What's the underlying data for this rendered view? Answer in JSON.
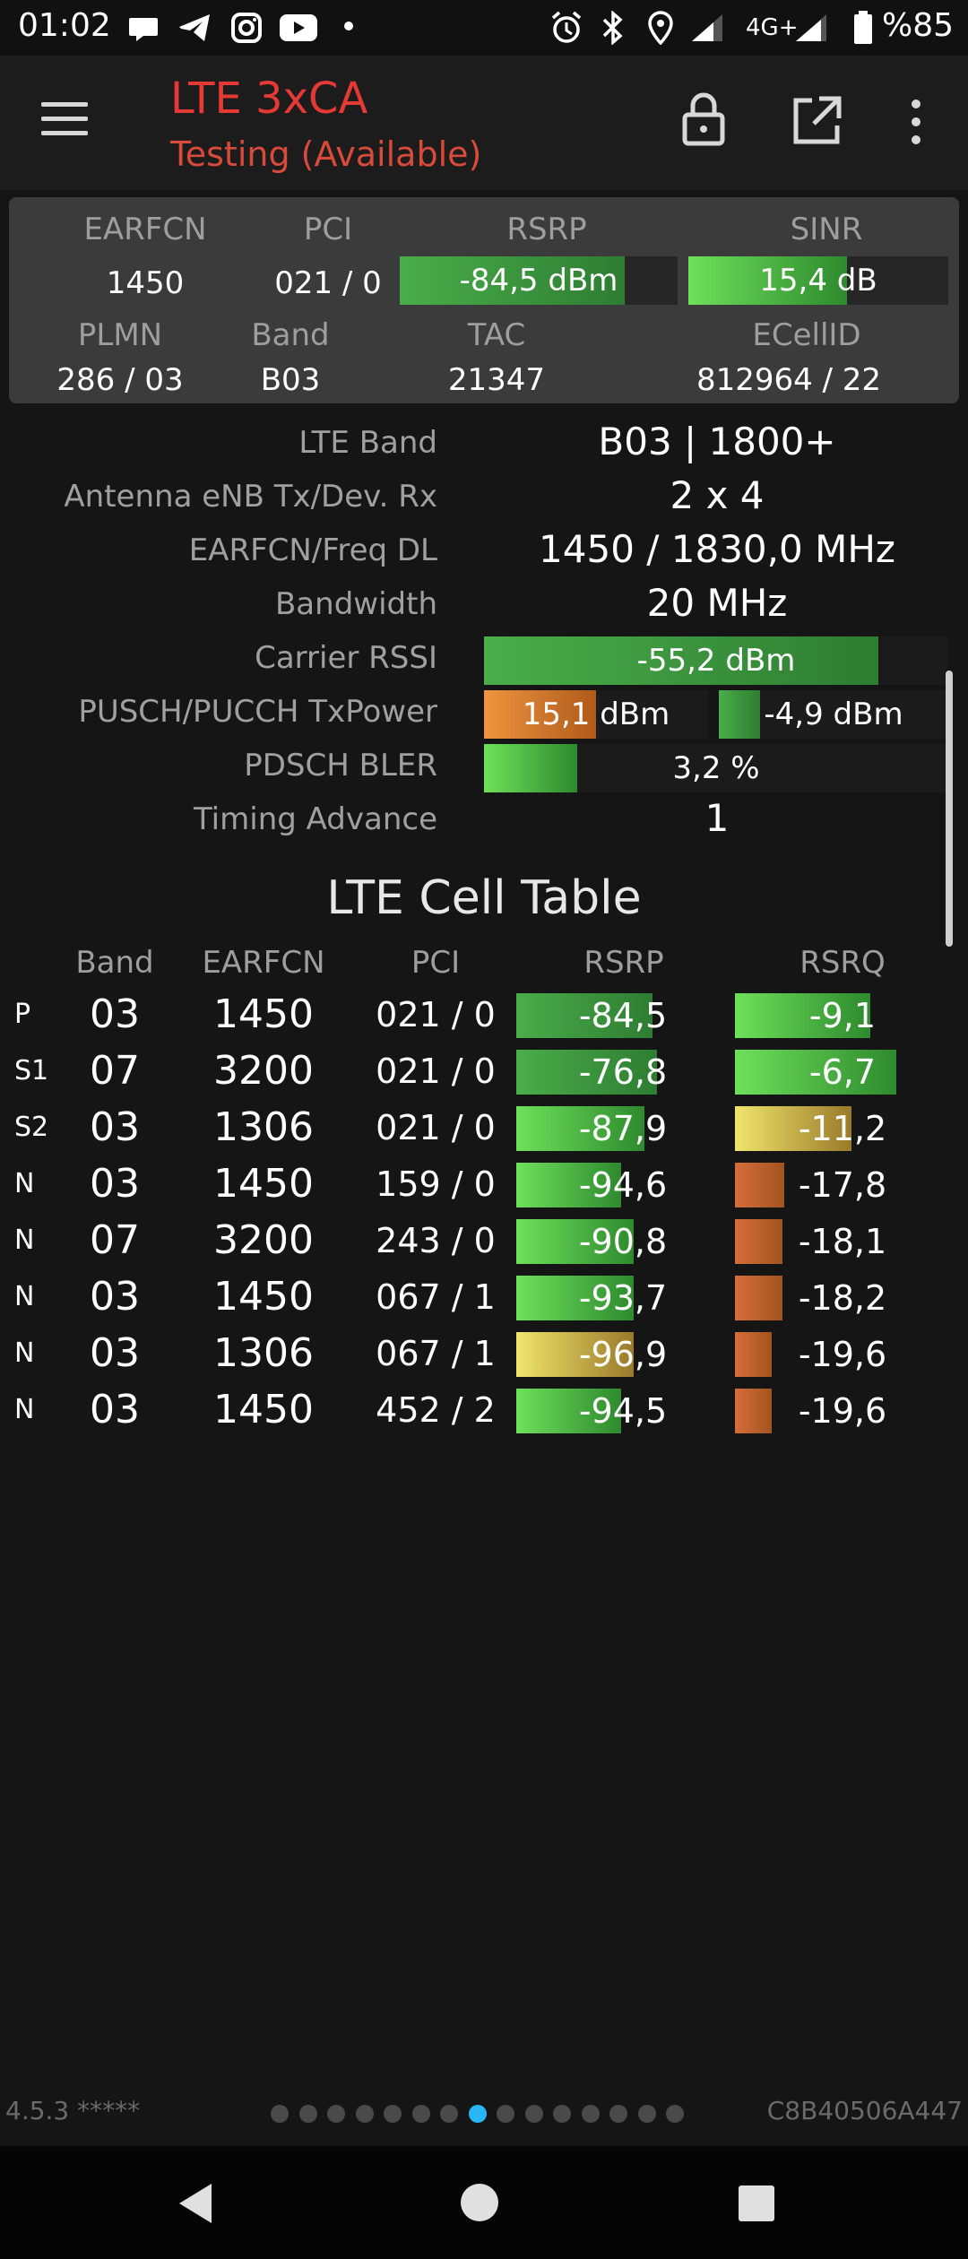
{
  "status_bar": {
    "time": "01:02",
    "notification_icons": [
      "chat-bubble-icon",
      "telegram-icon",
      "instagram-icon",
      "youtube-icon",
      "dot-icon"
    ],
    "right_icons": [
      "alarm-icon",
      "bluetooth-icon",
      "location-icon",
      "signal-icon"
    ],
    "network": "4G+",
    "battery": "%85"
  },
  "app_bar": {
    "title": "LTE 3xCA",
    "subtitle": "Testing (Available)",
    "accent_color": "#e53935"
  },
  "summary": {
    "labels": {
      "earfcn": "EARFCN",
      "pci": "PCI",
      "rsrp": "RSRP",
      "sinr": "SINR",
      "plmn": "PLMN",
      "band": "Band",
      "tac": "TAC",
      "ecellid": "ECellID"
    },
    "earfcn": "1450",
    "pci": "021 / 0",
    "rsrp": "-84,5 dBm",
    "rsrp_level": 0.81,
    "sinr": "15,4 dB",
    "sinr_level": 0.61,
    "plmn": "286 / 03",
    "band": "B03",
    "tac": "21347",
    "ecellid": "812964 / 22"
  },
  "details": {
    "lte_band_label": "LTE Band",
    "lte_band": "B03 | 1800+",
    "antenna_label": "Antenna eNB Tx/Dev. Rx",
    "antenna": "2 x 4",
    "earfcn_freq_label": "EARFCN/Freq DL",
    "earfcn_freq": "1450 / 1830,0 MHz",
    "bandwidth_label": "Bandwidth",
    "bandwidth": "20 MHz",
    "carrier_rssi_label": "Carrier RSSI",
    "carrier_rssi": "-55,2 dBm",
    "carrier_rssi_level": 0.85,
    "txpower_label": "PUSCH/PUCCH TxPower",
    "pusch_txpower": "15,1 dBm",
    "pusch_level": 0.5,
    "pucch_txpower": "-4,9 dBm",
    "pucch_level": 0.18,
    "bler_label": "PDSCH BLER",
    "bler": "3,2 %",
    "bler_level": 0.2,
    "timing_advance_label": "Timing Advance",
    "timing_advance": "1"
  },
  "table": {
    "title": "LTE Cell Table",
    "headers": [
      "Band",
      "EARFCN",
      "PCI",
      "RSRP",
      "RSRQ"
    ],
    "rows": [
      {
        "tag": "P",
        "band": "03",
        "earfcn": "1450",
        "pci": "021 / 0",
        "rsrp": "-84,5",
        "rsrp_level": 0.64,
        "rsrp_color": "green-dark",
        "rsrq": "-9,1",
        "rsrq_level": 0.63,
        "rsrq_color": "green"
      },
      {
        "tag": "S1",
        "band": "07",
        "earfcn": "3200",
        "pci": "021 / 0",
        "rsrp": "-76,8",
        "rsrp_level": 0.66,
        "rsrp_color": "green-dark",
        "rsrq": "-6,7",
        "rsrq_level": 0.75,
        "rsrq_color": "green"
      },
      {
        "tag": "S2",
        "band": "03",
        "earfcn": "1306",
        "pci": "021 / 0",
        "rsrp": "-87,9",
        "rsrp_level": 0.6,
        "rsrp_color": "green",
        "rsrq": "-11,2",
        "rsrq_level": 0.54,
        "rsrq_color": "yellow"
      },
      {
        "tag": "N",
        "band": "03",
        "earfcn": "1450",
        "pci": "159 / 0",
        "rsrp": "-94,6",
        "rsrp_level": 0.49,
        "rsrp_color": "green",
        "rsrq": "-17,8",
        "rsrq_level": 0.23,
        "rsrq_color": "orange"
      },
      {
        "tag": "N",
        "band": "07",
        "earfcn": "3200",
        "pci": "243 / 0",
        "rsrp": "-90,8",
        "rsrp_level": 0.55,
        "rsrp_color": "green",
        "rsrq": "-18,1",
        "rsrq_level": 0.22,
        "rsrq_color": "orange"
      },
      {
        "tag": "N",
        "band": "03",
        "earfcn": "1450",
        "pci": "067 / 1",
        "rsrp": "-93,7",
        "rsrp_level": 0.55,
        "rsrp_color": "green",
        "rsrq": "-18,2",
        "rsrq_level": 0.22,
        "rsrq_color": "orange"
      },
      {
        "tag": "N",
        "band": "03",
        "earfcn": "1306",
        "pci": "067 / 1",
        "rsrp": "-96,9",
        "rsrp_level": 0.55,
        "rsrp_color": "yellow",
        "rsrq": "-19,6",
        "rsrq_level": 0.17,
        "rsrq_color": "orange"
      },
      {
        "tag": "N",
        "band": "03",
        "earfcn": "1450",
        "pci": "452 / 2",
        "rsrp": "-94,5",
        "rsrp_level": 0.49,
        "rsrp_color": "green",
        "rsrq": "-19,6",
        "rsrq_level": 0.17,
        "rsrq_color": "orange"
      }
    ]
  },
  "footer": {
    "version": "4.5.3 *****",
    "device_id": "C8B40506A447",
    "page_count": 15,
    "active_page": 8
  },
  "nav_bar": {
    "icons": [
      "back-icon",
      "home-icon",
      "recents-icon"
    ]
  }
}
